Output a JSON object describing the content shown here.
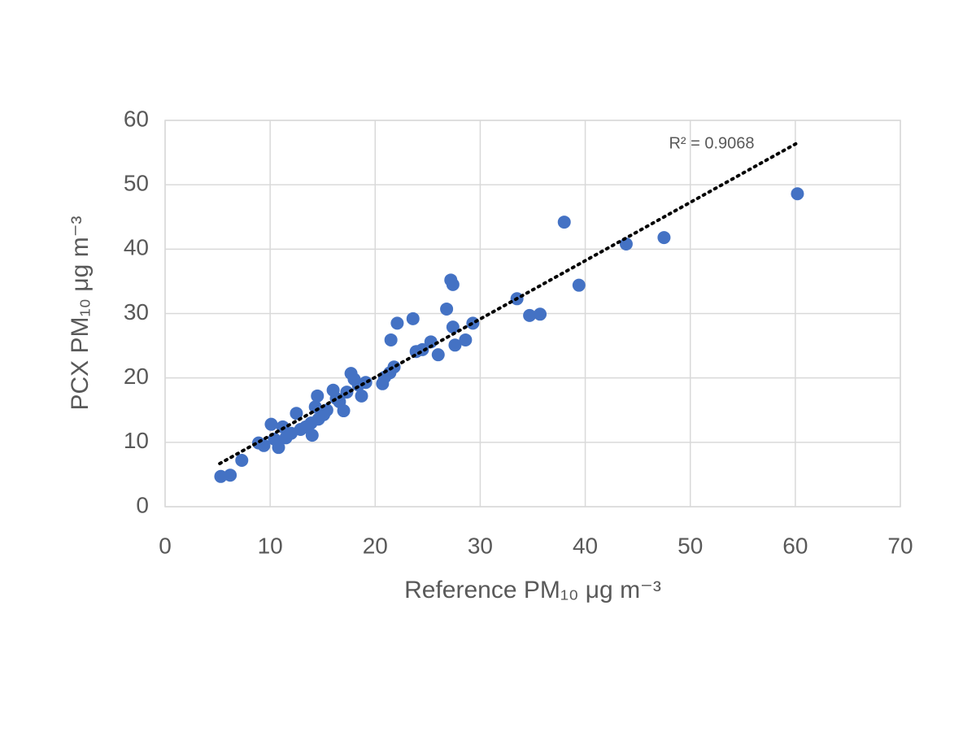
{
  "chart_data": {
    "type": "scatter",
    "x_label": "Reference PM₁₀ μg m⁻³",
    "y_label": "PCX PM₁₀ μg m⁻³",
    "annotation": "R² = 0.9068",
    "color": "#4472c4",
    "xlim": [
      0,
      70
    ],
    "xticks": [
      0,
      10,
      20,
      30,
      40,
      50,
      60,
      70
    ],
    "ylim": [
      0,
      60
    ],
    "yticks": [
      0,
      10,
      20,
      30,
      40,
      50,
      60
    ],
    "grid": true,
    "x": [
      5.3,
      6.2,
      7.3,
      8.9,
      9.4,
      10.1,
      10.4,
      10.8,
      11.2,
      11.5,
      12.0,
      12.5,
      12.9,
      13.4,
      13.9,
      14.0,
      14.3,
      14.5,
      14.6,
      15.1,
      15.4,
      16.0,
      16.3,
      16.6,
      17.0,
      17.3,
      17.7,
      18.0,
      18.4,
      18.7,
      19.1,
      20.7,
      20.9,
      21.4,
      21.5,
      21.8,
      22.1,
      23.6,
      23.9,
      24.5,
      25.3,
      26.0,
      26.8,
      27.2,
      27.4,
      27.4,
      27.6,
      28.6,
      29.3,
      33.5,
      34.7,
      35.7,
      38.0,
      39.4,
      43.9,
      47.5,
      60.2
    ],
    "values": [
      4.7,
      4.9,
      7.2,
      9.9,
      9.5,
      12.8,
      10.5,
      9.2,
      12.4,
      10.7,
      11.4,
      14.5,
      12.0,
      12.4,
      13.0,
      11.1,
      15.5,
      17.2,
      13.6,
      14.3,
      15.0,
      18.1,
      16.8,
      16.3,
      14.9,
      17.8,
      20.7,
      19.8,
      18.9,
      17.2,
      19.3,
      19.1,
      20.1,
      20.8,
      25.9,
      21.7,
      28.5,
      29.2,
      24.1,
      24.4,
      25.6,
      23.6,
      30.7,
      35.2,
      34.5,
      27.9,
      25.1,
      25.9,
      28.5,
      32.3,
      29.7,
      29.9,
      44.2,
      34.4,
      40.8,
      41.8,
      48.6
    ],
    "trendline": {
      "x": [
        5.2,
        60.2
      ],
      "y": [
        6.7,
        56.5
      ]
    }
  }
}
